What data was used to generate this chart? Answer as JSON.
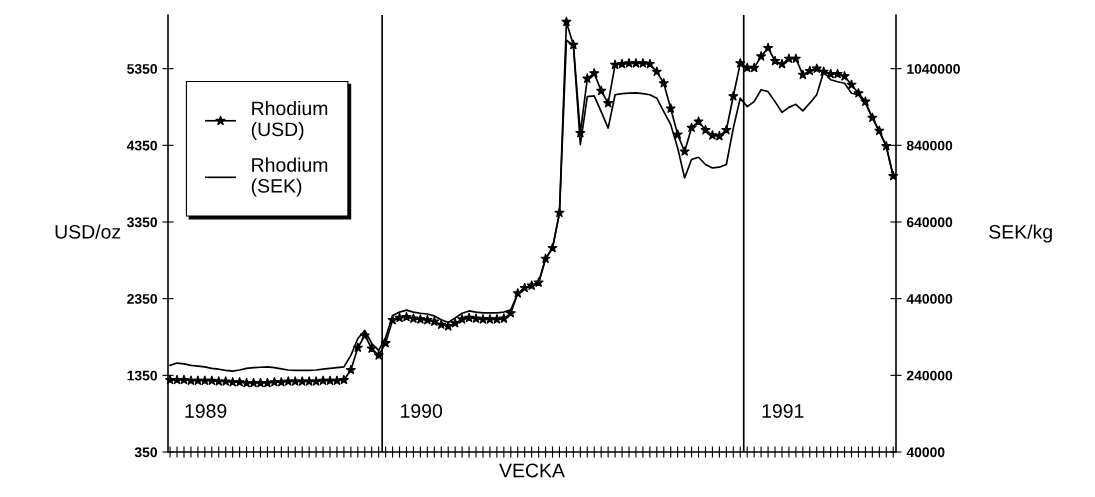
{
  "chart_data": {
    "type": "line",
    "xlabel": "VECKA",
    "ylabel": "USD/oz",
    "y2label": "SEK/kg",
    "categories": [
      null,
      null,
      null,
      null,
      null,
      null,
      null,
      null,
      null,
      null,
      null,
      null,
      null,
      null,
      null,
      null,
      null,
      null,
      null,
      null,
      null,
      null,
      null,
      null,
      null,
      null,
      null,
      null,
      null,
      null,
      null,
      null,
      null,
      null,
      null,
      null,
      null,
      null,
      null,
      null,
      null,
      null,
      null,
      null,
      null,
      null,
      null,
      null,
      null,
      null,
      null,
      null,
      null,
      null,
      null,
      null,
      null,
      null,
      null,
      null,
      null,
      null,
      null,
      null,
      null,
      null,
      null,
      null,
      null,
      null,
      null,
      null,
      null,
      null,
      null,
      null,
      null,
      null,
      null,
      null,
      null,
      null,
      null,
      null,
      null,
      null,
      null,
      null,
      null,
      null,
      null,
      null,
      null,
      null,
      null,
      null,
      null,
      null,
      null,
      null,
      null,
      null,
      null,
      null,
      null
    ],
    "series": [
      {
        "name": "Rhodium\n(USD)",
        "color": "#000000",
        "marker": "star",
        "values": [
          1290,
          1290,
          1290,
          1280,
          1280,
          1280,
          1280,
          1270,
          1270,
          1260,
          1260,
          1250,
          1250,
          1250,
          1250,
          1260,
          1260,
          1270,
          1270,
          1270,
          1270,
          1270,
          1280,
          1280,
          1280,
          1290,
          1420,
          1710,
          1870,
          1700,
          1610,
          1770,
          2070,
          2100,
          2110,
          2090,
          2080,
          2070,
          2050,
          2010,
          1990,
          2030,
          2080,
          2100,
          2090,
          2080,
          2080,
          2080,
          2090,
          2160,
          2420,
          2490,
          2520,
          2560,
          2870,
          3010,
          3470,
          5960,
          5660,
          4510,
          5220,
          5290,
          5060,
          4900,
          5400,
          5410,
          5420,
          5420,
          5420,
          5410,
          5310,
          5160,
          4830,
          4490,
          4270,
          4580,
          4660,
          4550,
          4480,
          4470,
          4550,
          4990,
          5420,
          5360,
          5360,
          5510,
          5620,
          5450,
          5410,
          5480,
          5480,
          5270,
          5320,
          5350,
          5310,
          5280,
          5280,
          5250,
          5140,
          5030,
          4920,
          4710,
          4540,
          4340,
          3950
        ]
      },
      {
        "name": "Rhodium\n(SEK)",
        "color": "#000000",
        "marker": "none",
        "axis": "y2",
        "values": [
          266000,
          272000,
          270000,
          266000,
          264000,
          262000,
          258000,
          256000,
          253000,
          251000,
          254000,
          258000,
          260000,
          261000,
          262000,
          260000,
          257000,
          254000,
          253000,
          253000,
          253000,
          254000,
          256000,
          258000,
          260000,
          262000,
          292000,
          336000,
          357000,
          323000,
          305000,
          339000,
          396000,
          405000,
          410000,
          405000,
          402000,
          400000,
          395000,
          385000,
          378000,
          390000,
          402000,
          408000,
          405000,
          403000,
          403000,
          403000,
          405000,
          411000,
          453000,
          468000,
          474000,
          481000,
          544000,
          572000,
          663000,
          1114000,
          1101000,
          842000,
          967000,
          969000,
          928000,
          885000,
          972000,
          975000,
          976000,
          977000,
          975000,
          972000,
          963000,
          928000,
          894000,
          833000,
          755000,
          803000,
          809000,
          790000,
          781000,
          783000,
          790000,
          885000,
          963000,
          941000,
          954000,
          985000,
          980000,
          954000,
          926000,
          939000,
          947000,
          930000,
          950000,
          972000,
          1032000,
          1011000,
          1006000,
          1002000,
          976000,
          972000,
          950000,
          911000,
          876000,
          837000,
          759000
        ]
      }
    ],
    "ylim": [
      350,
      6050
    ],
    "yticks": [
      350,
      1350,
      2350,
      3350,
      4350,
      5350
    ],
    "y2lim": [
      40000,
      1180000
    ],
    "y2ticks": [
      40000,
      240000,
      440000,
      640000,
      840000,
      1040000
    ],
    "annotations": [
      "1989",
      "1990",
      "1991"
    ],
    "grid": false,
    "legend": "top left",
    "line_style": "solid"
  }
}
